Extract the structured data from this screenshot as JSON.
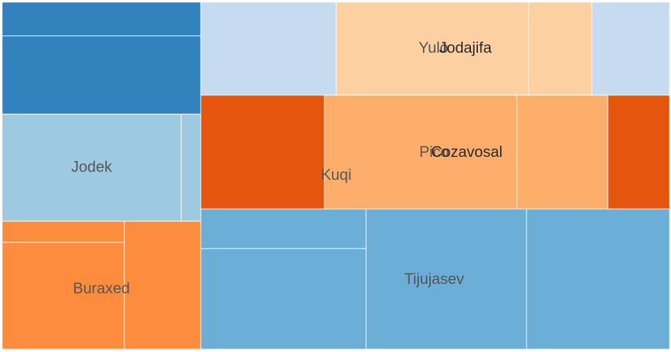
{
  "chart_data": {
    "type": "treemap",
    "groups": [
      {
        "name": "",
        "color": "#3182bd",
        "children": [
          {
            "name": "",
            "value": 13361
          },
          {
            "name": "",
            "value": 30946
          }
        ]
      },
      {
        "name": "Jodek",
        "color": "#9ecae1",
        "children": [
          {
            "name": "Jodek",
            "value": 38181
          },
          {
            "name": "",
            "value": 4171
          }
        ]
      },
      {
        "name": "Buraxed",
        "color": "#fd8d3c",
        "children": [
          {
            "name": "",
            "value": 5137
          },
          {
            "name": "",
            "value": 26023
          },
          {
            "name": "",
            "value": 19458
          }
        ]
      },
      {
        "name": "Yulo",
        "color": "#c6dbef",
        "children": [
          {
            "name": "Yulo",
            "value": 26207
          },
          {
            "name": "",
            "value": 14904
          }
        ]
      },
      {
        "name": "Jodajifa",
        "color": "#fdd0a2",
        "children": [
          {
            "name": "Jodajifa",
            "value": 36642
          },
          {
            "name": "",
            "value": 12170
          }
        ]
      },
      {
        "name": "Kuqi",
        "color": "#e6550d",
        "children": [
          {
            "name": "Kuqi",
            "value": 29017
          },
          {
            "name": "",
            "value": 14576
          }
        ]
      },
      {
        "name": "Pico",
        "color": "#fdae6b",
        "children": [
          {
            "name": "Pico",
            "value": 45564
          }
        ]
      },
      {
        "name": "Cozavosal",
        "color": "#fdae6b",
        "children": [
          {
            "name": "Cozavosal",
            "value": 21633
          }
        ]
      },
      {
        "name": "Tijujasev",
        "color": "#6baed6",
        "children": [
          {
            "name": "",
            "value": 13355
          },
          {
            "name": "",
            "value": 33946
          },
          {
            "name": "Tijujasev",
            "value": 46312
          },
          {
            "name": "",
            "value": 41802
          }
        ]
      }
    ]
  }
}
